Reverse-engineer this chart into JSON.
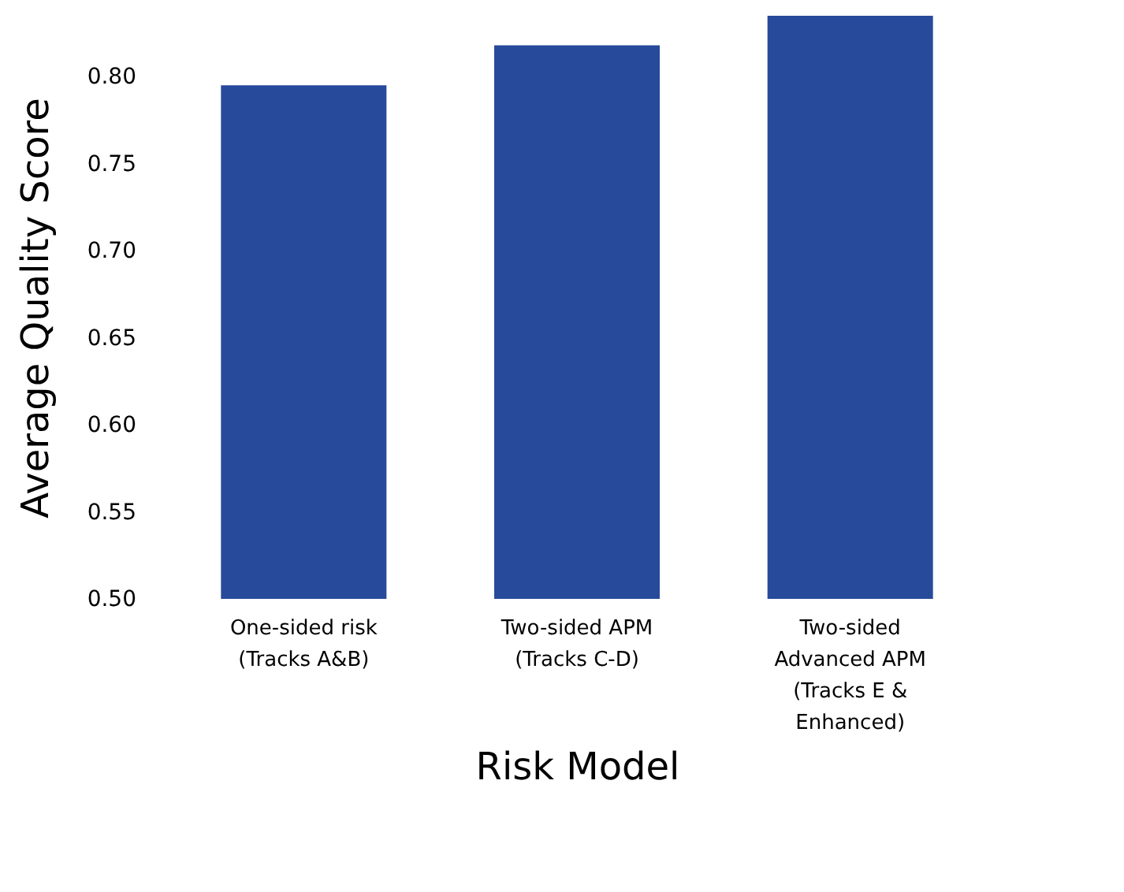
{
  "chart_data": {
    "type": "bar",
    "xlabel": "Risk Model",
    "ylabel": "Average Quality Score",
    "categories": [
      "One-sided risk\n(Tracks A&B)",
      "Two-sided APM\n(Tracks C-D)",
      "Two-sided\nAdvanced APM\n(Tracks E &\nEnhanced)"
    ],
    "values": [
      0.795,
      0.818,
      0.835
    ],
    "color": "#284a9a",
    "ylim": [
      0.5,
      0.835
    ],
    "yticks": [
      {
        "value": 0.5,
        "label": "0.50"
      },
      {
        "value": 0.55,
        "label": "0.55"
      },
      {
        "value": 0.6,
        "label": "0.60"
      },
      {
        "value": 0.65,
        "label": "0.65"
      },
      {
        "value": 0.7,
        "label": "0.70"
      },
      {
        "value": 0.75,
        "label": "0.75"
      },
      {
        "value": 0.8,
        "label": "0.80"
      }
    ],
    "grid": false
  }
}
